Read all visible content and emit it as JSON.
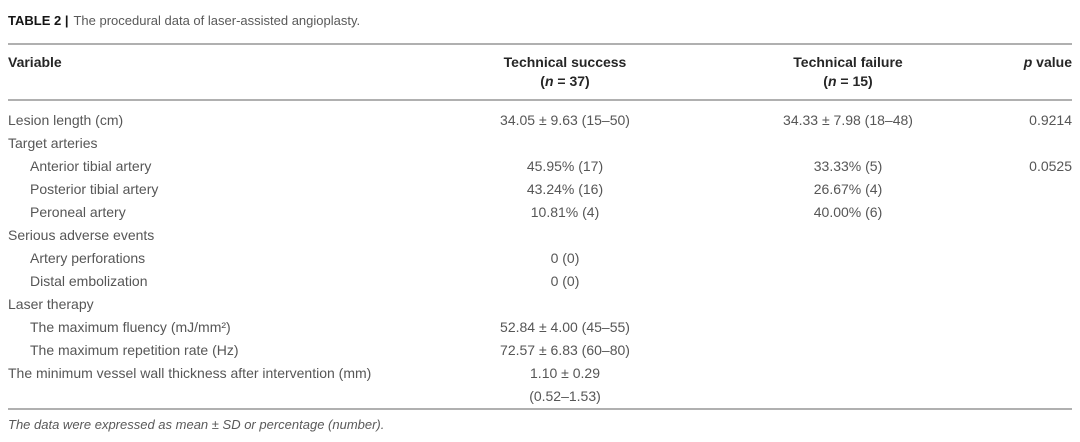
{
  "page": {
    "background": "#ffffff",
    "body_text_color": "#565656",
    "header_text_color": "#262626",
    "rule_color": "#b0b0b0"
  },
  "title": {
    "label": "TABLE 2 |",
    "text": "The procedural data of laser-assisted angioplasty."
  },
  "table": {
    "header": {
      "variable": "Variable",
      "success": {
        "title": "Technical success",
        "sub_pre": "(",
        "sub_italic": "n",
        "sub_post": " = 37)"
      },
      "failure": {
        "title": "Technical failure",
        "sub_pre": "(",
        "sub_italic": "n",
        "sub_post": " = 15)"
      },
      "p": {
        "italic": "p",
        "rest": " value"
      }
    },
    "rows": [
      {
        "label": "Lesion length (cm)",
        "indent": false,
        "success": "34.05 ± 9.63 (15–50)",
        "failure": "34.33 ± 7.98 (18–48)",
        "p": "0.9214"
      },
      {
        "label": "Target arteries",
        "indent": false,
        "success": "",
        "failure": "",
        "p": ""
      },
      {
        "label": "Anterior tibial artery",
        "indent": true,
        "success": "45.95% (17)",
        "failure": "33.33% (5)",
        "p": "0.0525"
      },
      {
        "label": "Posterior tibial artery",
        "indent": true,
        "success": "43.24% (16)",
        "failure": "26.67% (4)",
        "p": ""
      },
      {
        "label": "Peroneal artery",
        "indent": true,
        "success": "10.81% (4)",
        "failure": "40.00% (6)",
        "p": ""
      },
      {
        "label": "Serious adverse events",
        "indent": false,
        "success": "",
        "failure": "",
        "p": ""
      },
      {
        "label": "Artery perforations",
        "indent": true,
        "success": "0 (0)",
        "failure": "",
        "p": ""
      },
      {
        "label": "Distal embolization",
        "indent": true,
        "success": "0 (0)",
        "failure": "",
        "p": ""
      },
      {
        "label": "Laser therapy",
        "indent": false,
        "success": "",
        "failure": "",
        "p": ""
      },
      {
        "label": "The maximum fluency (mJ/mm²)",
        "indent": true,
        "success": "52.84 ± 4.00 (45–55)",
        "failure": "",
        "p": ""
      },
      {
        "label": "The maximum repetition rate (Hz)",
        "indent": true,
        "success": "72.57 ± 6.83 (60–80)",
        "failure": "",
        "p": ""
      },
      {
        "label": "The minimum vessel wall thickness after intervention (mm)",
        "indent": false,
        "success": "1.10 ± 0.29\n(0.52–1.53)",
        "failure": "",
        "p": ""
      }
    ]
  },
  "footnote": "The data were expressed as mean ± SD or percentage (number)."
}
